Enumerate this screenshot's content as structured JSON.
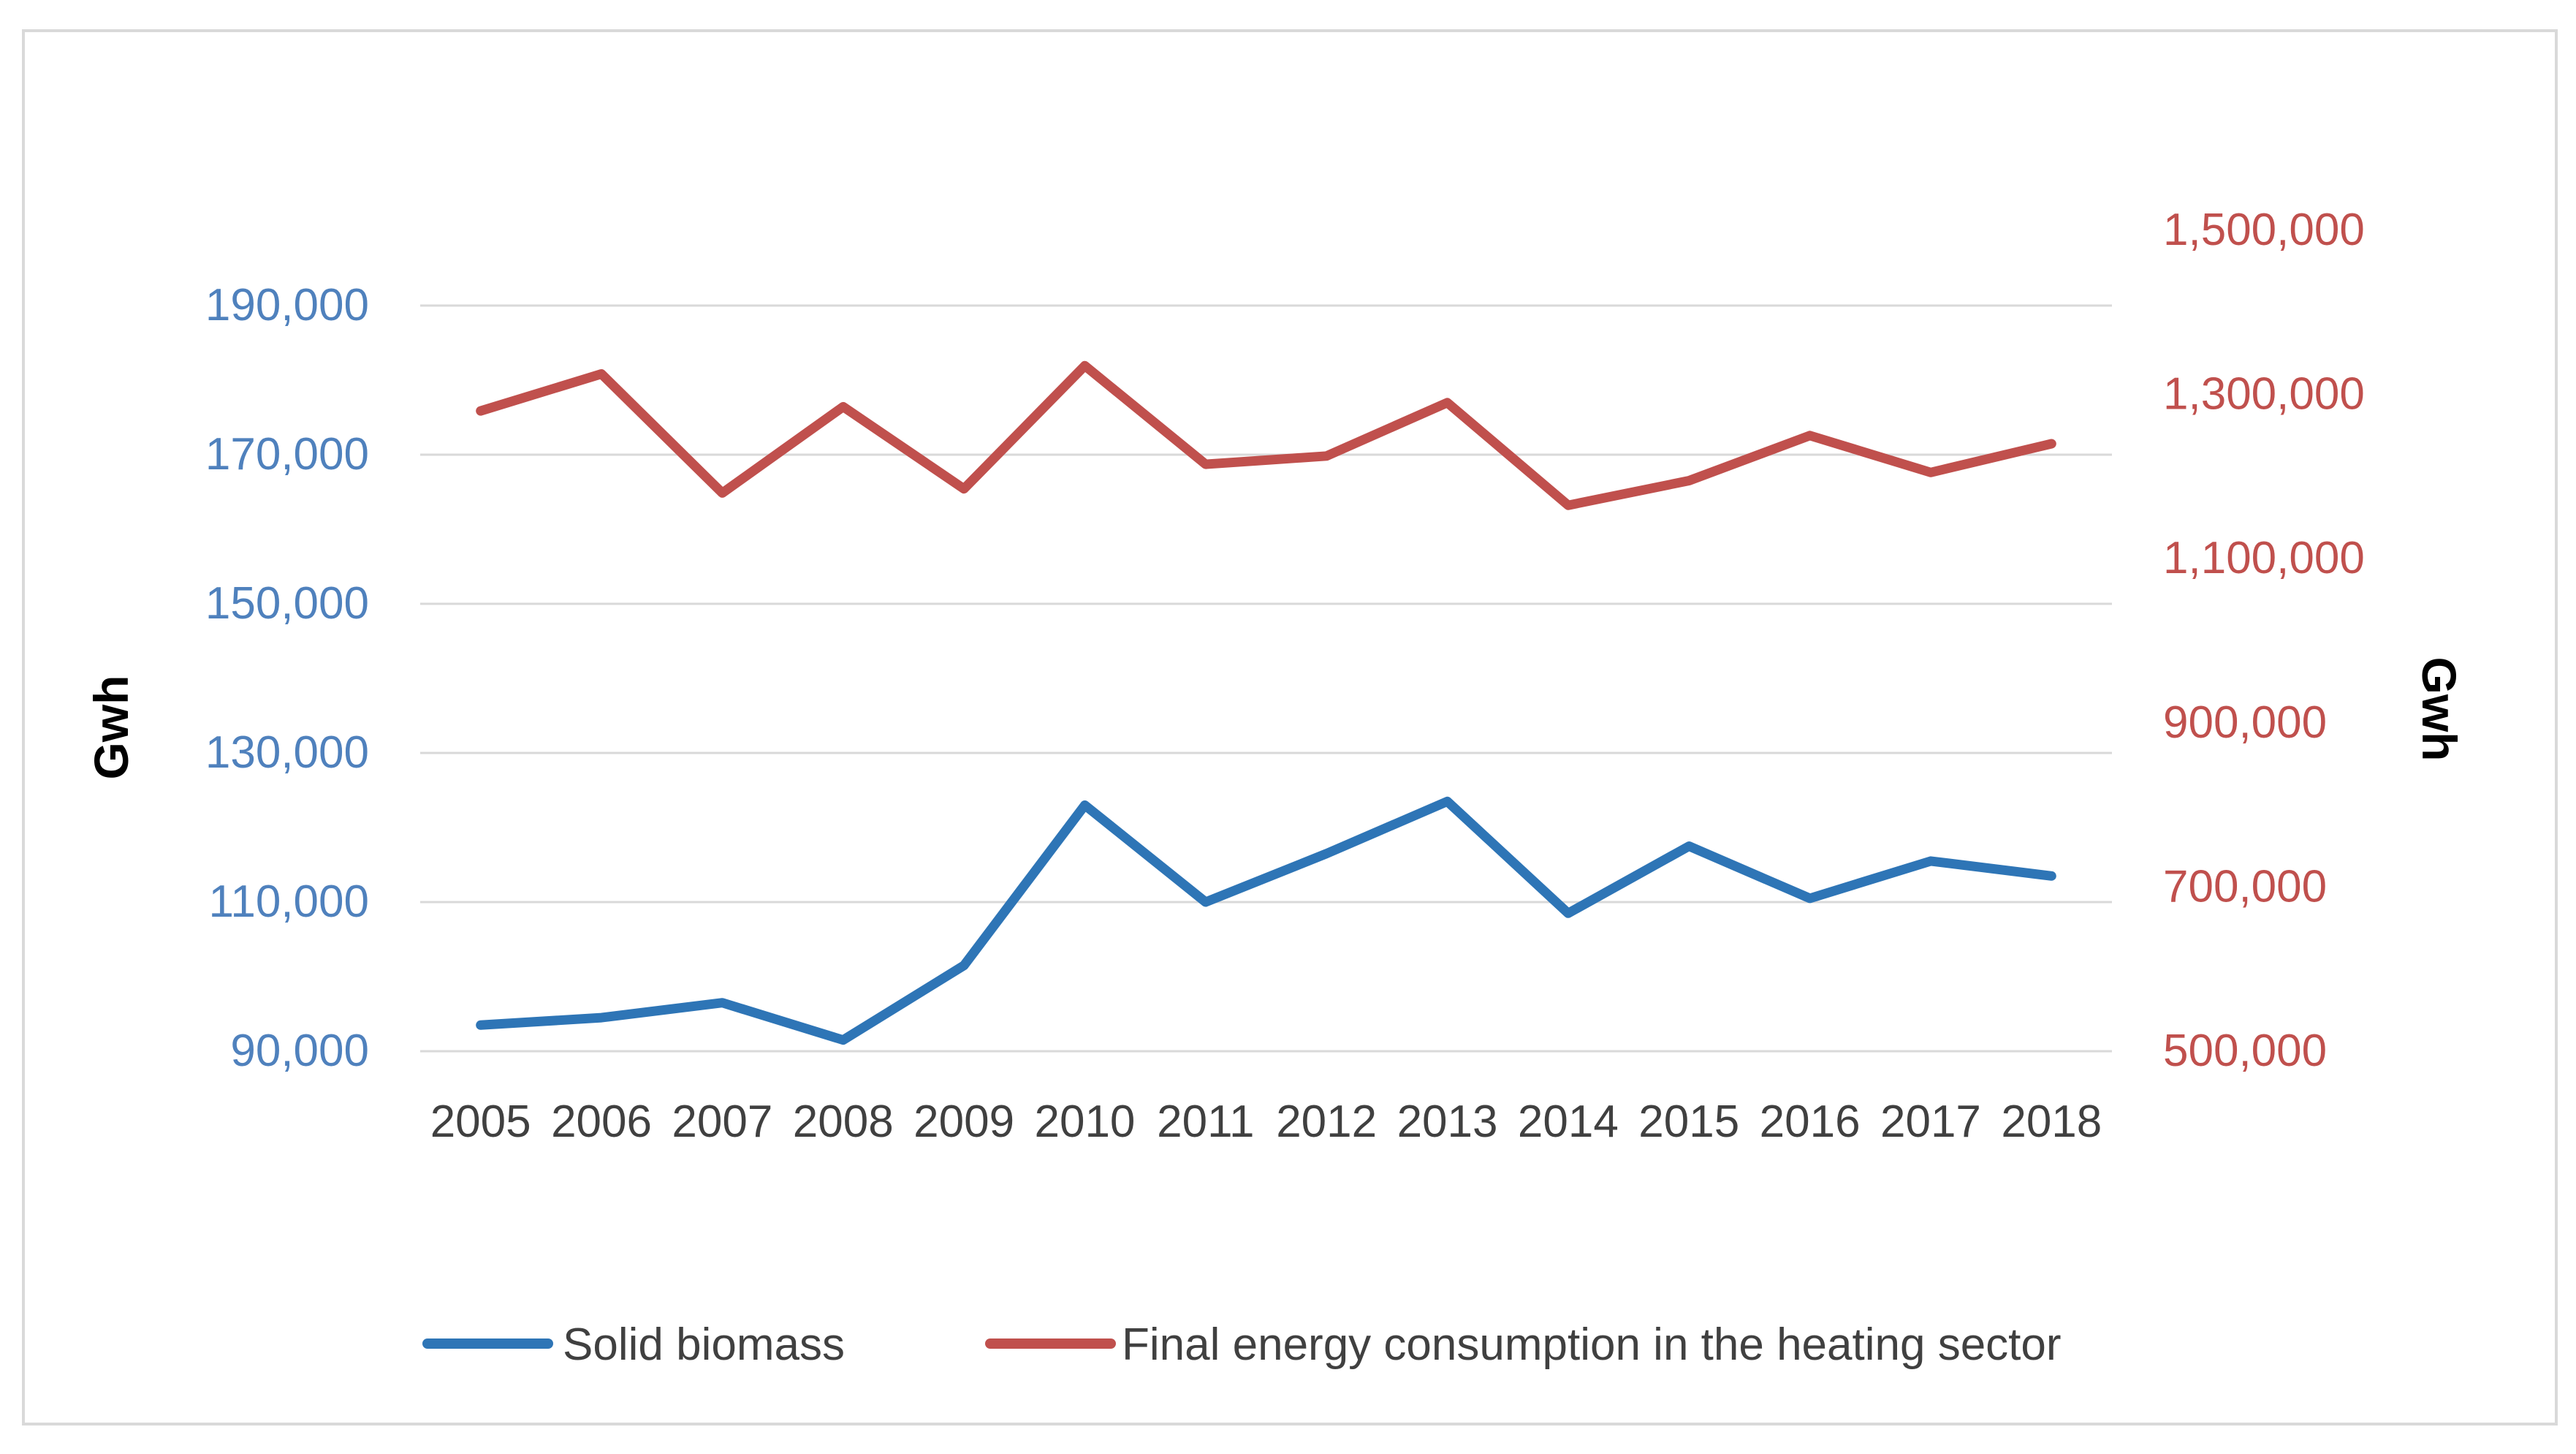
{
  "chart_data": {
    "type": "line",
    "title": "",
    "categories": [
      "2005",
      "2006",
      "2007",
      "2008",
      "2009",
      "2010",
      "2011",
      "2012",
      "2013",
      "2014",
      "2015",
      "2016",
      "2017",
      "2018"
    ],
    "series": [
      {
        "name": "Solid biomass",
        "axis": "left",
        "color": "#2e75b6",
        "values": [
          93500,
          94500,
          96500,
          91500,
          101500,
          123000,
          110000,
          116500,
          123500,
          108500,
          117500,
          110500,
          115500,
          113500
        ]
      },
      {
        "name": "Final energy consumption in the heating sector",
        "axis": "right",
        "color": "#c0504d",
        "values": [
          1280000,
          1325000,
          1180000,
          1285000,
          1185000,
          1335000,
          1215000,
          1225000,
          1290000,
          1165000,
          1195000,
          1250000,
          1205000,
          1240000
        ]
      }
    ],
    "y_left": {
      "label": "Gwh",
      "ticks": [
        "90,000",
        "110,000",
        "130,000",
        "150,000",
        "170,000",
        "190,000"
      ],
      "tick_values": [
        90000,
        110000,
        130000,
        150000,
        170000,
        190000
      ],
      "ylim": [
        90000,
        190000
      ],
      "color": "#4f81bd"
    },
    "y_right": {
      "label": "Gwh",
      "ticks": [
        "500,000",
        "700,000",
        "900,000",
        "1,100,000",
        "1,300,000",
        "1,500,000"
      ],
      "tick_values": [
        500000,
        700000,
        900000,
        1100000,
        1300000,
        1500000
      ],
      "ylim": [
        500000,
        1500000
      ],
      "color": "#c0504d"
    },
    "grid": true,
    "legend": "bottom"
  }
}
